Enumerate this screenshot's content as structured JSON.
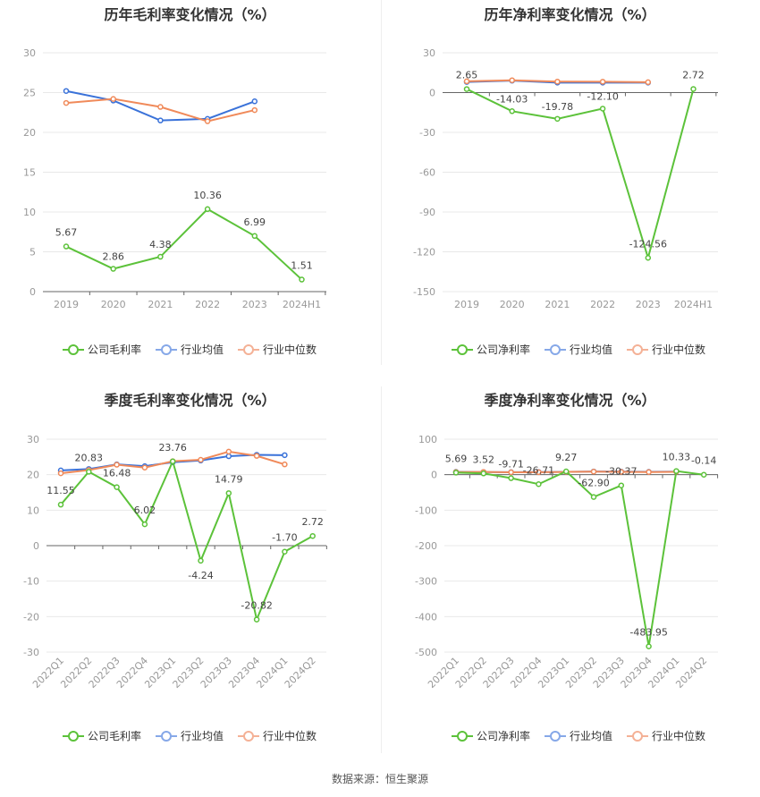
{
  "source": "数据来源：恒生聚源",
  "colors": {
    "company": "#5cc23a",
    "avg": "#3a72d9",
    "median": "#f08a5a",
    "grid": "#e8e8e8",
    "axis": "#666666",
    "label": "#444444",
    "legend_avg": "#86a8e8",
    "legend_median": "#f4b196"
  },
  "chart_data": [
    {
      "type": "line",
      "title": "历年毛利率变化情况（%）",
      "categories": [
        "2019",
        "2020",
        "2021",
        "2022",
        "2023",
        "2024H1"
      ],
      "ylim": [
        0,
        30
      ],
      "yticks": [
        0,
        5,
        10,
        15,
        20,
        25,
        30
      ],
      "series": [
        {
          "name": "公司毛利率",
          "values": [
            5.67,
            2.86,
            4.38,
            10.36,
            6.99,
            1.51
          ],
          "labels": [
            "5.67",
            "2.86",
            "4.38",
            "10.36",
            "6.99",
            "1.51"
          ]
        },
        {
          "name": "行业均值",
          "values": [
            25.2,
            24.0,
            21.5,
            21.7,
            23.9,
            null
          ]
        },
        {
          "name": "行业中位数",
          "values": [
            23.7,
            24.2,
            23.2,
            21.4,
            22.8,
            null
          ]
        }
      ]
    },
    {
      "type": "line",
      "title": "历年净利率变化情况（%）",
      "categories": [
        "2019",
        "2020",
        "2021",
        "2022",
        "2023",
        "2024H1"
      ],
      "ylim": [
        -150,
        30
      ],
      "yticks": [
        -150,
        -120,
        -90,
        -60,
        -30,
        0,
        30
      ],
      "series": [
        {
          "name": "公司净利率",
          "values": [
            2.65,
            -14.03,
            -19.78,
            -12.1,
            -124.56,
            2.72
          ],
          "labels": [
            "2.65",
            "-14.03",
            "-19.78",
            "-12.10",
            "-124.56",
            "2.72"
          ]
        },
        {
          "name": "行业均值",
          "values": [
            8.0,
            9.0,
            7.5,
            7.5,
            7.5,
            null
          ]
        },
        {
          "name": "行业中位数",
          "values": [
            8.5,
            9.3,
            8.3,
            8.2,
            7.8,
            null
          ]
        }
      ]
    },
    {
      "type": "line",
      "title": "季度毛利率变化情况（%）",
      "categories": [
        "2022Q1",
        "2022Q2",
        "2022Q3",
        "2022Q4",
        "2023Q1",
        "2023Q2",
        "2023Q3",
        "2023Q4",
        "2024Q1",
        "2024Q2"
      ],
      "ylim": [
        -30,
        30
      ],
      "yticks": [
        -30,
        -20,
        -10,
        0,
        10,
        20,
        30
      ],
      "series": [
        {
          "name": "公司毛利率",
          "values": [
            11.55,
            20.83,
            16.48,
            6.02,
            23.76,
            -4.24,
            14.79,
            -20.82,
            -1.7,
            2.72
          ],
          "labels": [
            "11.55",
            "20.83",
            "16.48",
            "6.02",
            "23.76",
            "-4.24",
            "14.79",
            "-20.82",
            "-1.70",
            "2.72"
          ]
        },
        {
          "name": "行业均值",
          "values": [
            21.2,
            21.6,
            22.9,
            22.4,
            23.5,
            24.0,
            25.2,
            25.6,
            25.5,
            null
          ]
        },
        {
          "name": "行业中位数",
          "values": [
            20.4,
            21.3,
            22.8,
            22.0,
            23.8,
            24.2,
            26.5,
            25.3,
            22.9,
            null
          ]
        }
      ]
    },
    {
      "type": "line",
      "title": "季度净利率变化情况（%）",
      "categories": [
        "2022Q1",
        "2022Q2",
        "2022Q3",
        "2022Q4",
        "2023Q1",
        "2023Q2",
        "2023Q3",
        "2023Q4",
        "2024Q1",
        "2024Q2"
      ],
      "ylim": [
        -500,
        100
      ],
      "yticks": [
        -500,
        -400,
        -300,
        -200,
        -100,
        0,
        100
      ],
      "series": [
        {
          "name": "公司净利率",
          "values": [
            5.69,
            3.52,
            -9.71,
            -26.71,
            9.27,
            -62.9,
            -30.37,
            -483.95,
            10.33,
            -0.14
          ],
          "labels": [
            "5.69",
            "3.52",
            "-9.71",
            "-26.71",
            "9.27",
            "-62.90",
            "-30.37",
            "-483.95",
            "10.33",
            "-0.14"
          ]
        },
        {
          "name": "行业均值",
          "values": [
            8.0,
            7.5,
            7.0,
            7.5,
            8.0,
            9.0,
            8.5,
            8.0,
            8.5,
            null
          ]
        },
        {
          "name": "行业中位数",
          "values": [
            7.5,
            7.8,
            6.8,
            7.0,
            7.8,
            8.5,
            8.0,
            7.5,
            8.0,
            null
          ]
        }
      ]
    }
  ]
}
